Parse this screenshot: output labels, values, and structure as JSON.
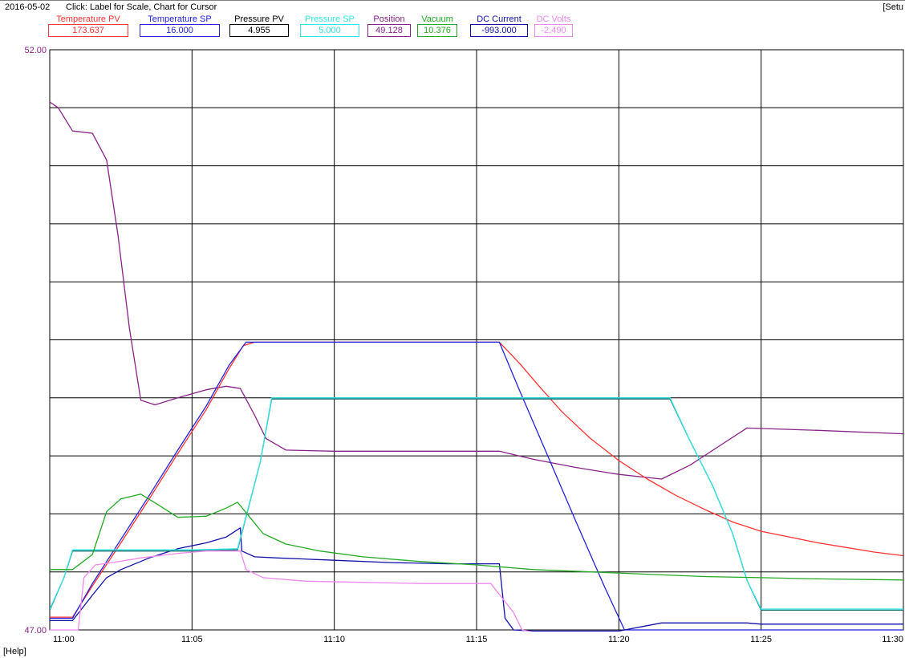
{
  "header": {
    "date": "2016-05-02",
    "hint": "Click: Label for Scale, Chart for Cursor",
    "setup_label": "[Setu"
  },
  "footer": {
    "help_label": "[Help]"
  },
  "tags": [
    {
      "label": "Temperature PV",
      "value": "173.637",
      "color": "#ff3333"
    },
    {
      "label": "Temperature SP",
      "value": "16.000",
      "color": "#2222dd"
    },
    {
      "label": "Pressure PV",
      "value": "4.955",
      "color": "#000000"
    },
    {
      "label": "Pressure SP",
      "value": "5.000",
      "color": "#33e6e6"
    },
    {
      "label": "Position",
      "value": "49.128",
      "color": "#882288"
    },
    {
      "label": "Vacuum",
      "value": "10.376",
      "color": "#22aa22"
    },
    {
      "label": "DC Current",
      "value": "-993.000",
      "color": "#1111aa"
    },
    {
      "label": "DC Volts",
      "value": "-2.490",
      "color": "#ee88ee"
    }
  ],
  "chart_data": {
    "type": "line",
    "title": "",
    "xlabel": "",
    "ylabel": "",
    "y_scale_labels": [
      "52.00",
      "47.00"
    ],
    "ylim": [
      47,
      52
    ],
    "xlim": [
      0,
      30
    ],
    "x_ticks": [
      {
        "t": 0,
        "label": "11:00"
      },
      {
        "t": 5,
        "label": "11:05"
      },
      {
        "t": 10,
        "label": "11:10"
      },
      {
        "t": 15,
        "label": "11:15"
      },
      {
        "t": 20,
        "label": "11:20"
      },
      {
        "t": 25,
        "label": "11:25"
      },
      {
        "t": 30,
        "label": "11:30"
      }
    ],
    "grid": true,
    "horizontal_gridlines": 9,
    "series": [
      {
        "name": "Position",
        "color": "#882288",
        "points": [
          [
            0,
            51.55
          ],
          [
            0.3,
            51.5
          ],
          [
            0.8,
            51.3
          ],
          [
            1.5,
            51.28
          ],
          [
            2.0,
            51.05
          ],
          [
            2.4,
            50.4
          ],
          [
            2.8,
            49.6
          ],
          [
            3.2,
            48.98
          ],
          [
            3.7,
            48.94
          ],
          [
            4.5,
            49.0
          ],
          [
            5.5,
            49.07
          ],
          [
            6.2,
            49.1
          ],
          [
            6.7,
            49.08
          ],
          [
            7.2,
            48.85
          ],
          [
            7.6,
            48.65
          ],
          [
            8.3,
            48.55
          ],
          [
            10,
            48.54
          ],
          [
            12,
            48.54
          ],
          [
            14,
            48.54
          ],
          [
            15.8,
            48.54
          ],
          [
            17,
            48.47
          ],
          [
            18.5,
            48.4
          ],
          [
            20,
            48.34
          ],
          [
            21.5,
            48.3
          ],
          [
            22.5,
            48.42
          ],
          [
            23.5,
            48.58
          ],
          [
            24.5,
            48.74
          ],
          [
            27,
            48.72
          ],
          [
            30,
            48.69
          ]
        ]
      },
      {
        "name": "Temperature PV",
        "color": "#ff3333",
        "points": [
          [
            0,
            47.11
          ],
          [
            0.8,
            47.11
          ],
          [
            1.5,
            47.38
          ],
          [
            2.5,
            47.75
          ],
          [
            3.5,
            48.13
          ],
          [
            4.5,
            48.52
          ],
          [
            5.5,
            48.9
          ],
          [
            6.3,
            49.25
          ],
          [
            6.8,
            49.45
          ],
          [
            7.2,
            49.48
          ],
          [
            8,
            49.48
          ],
          [
            10,
            49.48
          ],
          [
            12,
            49.48
          ],
          [
            14,
            49.48
          ],
          [
            15.8,
            49.48
          ],
          [
            16.5,
            49.3
          ],
          [
            17.2,
            49.1
          ],
          [
            18,
            48.88
          ],
          [
            19,
            48.65
          ],
          [
            20,
            48.46
          ],
          [
            21,
            48.3
          ],
          [
            22,
            48.16
          ],
          [
            23,
            48.04
          ],
          [
            24,
            47.93
          ],
          [
            25,
            47.85
          ],
          [
            26,
            47.8
          ],
          [
            27,
            47.75
          ],
          [
            28,
            47.71
          ],
          [
            29,
            47.67
          ],
          [
            30,
            47.64
          ]
        ]
      },
      {
        "name": "Temperature SP",
        "color": "#2222dd",
        "points": [
          [
            0,
            47.1
          ],
          [
            0.8,
            47.1
          ],
          [
            1.5,
            47.4
          ],
          [
            2.5,
            47.78
          ],
          [
            3.5,
            48.16
          ],
          [
            4.5,
            48.55
          ],
          [
            5.5,
            48.93
          ],
          [
            6.3,
            49.28
          ],
          [
            6.9,
            49.48
          ],
          [
            8,
            49.48
          ],
          [
            12,
            49.48
          ],
          [
            15.8,
            49.48
          ],
          [
            16.5,
            49.07
          ],
          [
            17.5,
            48.5
          ],
          [
            18.5,
            47.93
          ],
          [
            19.5,
            47.37
          ],
          [
            20.2,
            47.0
          ],
          [
            21,
            47.0
          ],
          [
            30,
            47.0
          ]
        ]
      },
      {
        "name": "DC Current",
        "color": "#1111aa",
        "points": [
          [
            0,
            47.08
          ],
          [
            0.8,
            47.08
          ],
          [
            1.5,
            47.3
          ],
          [
            2.0,
            47.45
          ],
          [
            2.5,
            47.52
          ],
          [
            3.5,
            47.62
          ],
          [
            4.5,
            47.7
          ],
          [
            5.5,
            47.75
          ],
          [
            6.2,
            47.8
          ],
          [
            6.7,
            47.88
          ],
          [
            6.75,
            47.68
          ],
          [
            7.2,
            47.63
          ],
          [
            8,
            47.62
          ],
          [
            10,
            47.6
          ],
          [
            12,
            47.58
          ],
          [
            14,
            47.57
          ],
          [
            15.8,
            47.57
          ],
          [
            16.0,
            47.1
          ],
          [
            16.3,
            47.0
          ],
          [
            17,
            46.99
          ],
          [
            20,
            46.99
          ],
          [
            21.5,
            47.06
          ],
          [
            22,
            47.06
          ],
          [
            24.5,
            47.06
          ],
          [
            25,
            47.05
          ],
          [
            30,
            47.05
          ]
        ]
      },
      {
        "name": "Pressure PV",
        "color": "#1a6b6b",
        "points": [
          [
            0,
            47.17
          ],
          [
            0.5,
            47.45
          ],
          [
            0.8,
            47.68
          ],
          [
            5,
            47.68
          ],
          [
            6.6,
            47.69
          ],
          [
            7.4,
            48.45
          ],
          [
            7.8,
            48.99
          ],
          [
            10,
            48.99
          ],
          [
            15,
            48.99
          ],
          [
            20,
            48.99
          ],
          [
            21.8,
            48.99
          ],
          [
            22.5,
            48.63
          ],
          [
            23.3,
            48.24
          ],
          [
            24,
            47.83
          ],
          [
            24.5,
            47.43
          ],
          [
            25,
            47.17
          ],
          [
            30,
            47.17
          ]
        ]
      },
      {
        "name": "Pressure SP",
        "color": "#33e6e6",
        "points": [
          [
            0,
            47.18
          ],
          [
            0.5,
            47.45
          ],
          [
            0.8,
            47.69
          ],
          [
            5,
            47.69
          ],
          [
            6.6,
            47.7
          ],
          [
            7.4,
            48.45
          ],
          [
            7.8,
            49.0
          ],
          [
            10,
            49.0
          ],
          [
            15,
            49.0
          ],
          [
            20,
            49.0
          ],
          [
            21.8,
            49.0
          ],
          [
            22.5,
            48.63
          ],
          [
            23.3,
            48.24
          ],
          [
            24,
            47.83
          ],
          [
            24.5,
            47.43
          ],
          [
            25,
            47.18
          ],
          [
            30,
            47.18
          ]
        ]
      },
      {
        "name": "Vacuum",
        "color": "#22aa22",
        "points": [
          [
            0,
            47.52
          ],
          [
            0.8,
            47.52
          ],
          [
            1.5,
            47.65
          ],
          [
            2.0,
            48.02
          ],
          [
            2.5,
            48.13
          ],
          [
            3.2,
            48.17
          ],
          [
            3.8,
            48.08
          ],
          [
            4.5,
            47.97
          ],
          [
            5.5,
            47.98
          ],
          [
            6.2,
            48.05
          ],
          [
            6.6,
            48.1
          ],
          [
            7.0,
            47.98
          ],
          [
            7.5,
            47.83
          ],
          [
            8.3,
            47.74
          ],
          [
            9.5,
            47.68
          ],
          [
            11,
            47.63
          ],
          [
            13,
            47.59
          ],
          [
            15,
            47.56
          ],
          [
            17,
            47.52
          ],
          [
            19,
            47.5
          ],
          [
            21,
            47.48
          ],
          [
            23,
            47.46
          ],
          [
            25,
            47.45
          ],
          [
            27,
            47.44
          ],
          [
            30,
            47.43
          ]
        ]
      },
      {
        "name": "DC Volts",
        "color": "#ee88ee",
        "points": [
          [
            0,
            47.0
          ],
          [
            1.0,
            47.0
          ],
          [
            1.2,
            47.45
          ],
          [
            1.6,
            47.56
          ],
          [
            2.2,
            47.58
          ],
          [
            3.2,
            47.62
          ],
          [
            4.5,
            47.66
          ],
          [
            5.5,
            47.68
          ],
          [
            6.7,
            47.68
          ],
          [
            6.9,
            47.52
          ],
          [
            7.5,
            47.45
          ],
          [
            9,
            47.42
          ],
          [
            11,
            47.41
          ],
          [
            13,
            47.4
          ],
          [
            15.5,
            47.4
          ],
          [
            16.3,
            47.15
          ],
          [
            16.6,
            47.0
          ],
          [
            17,
            46.98
          ],
          [
            30,
            46.98
          ]
        ]
      }
    ]
  }
}
